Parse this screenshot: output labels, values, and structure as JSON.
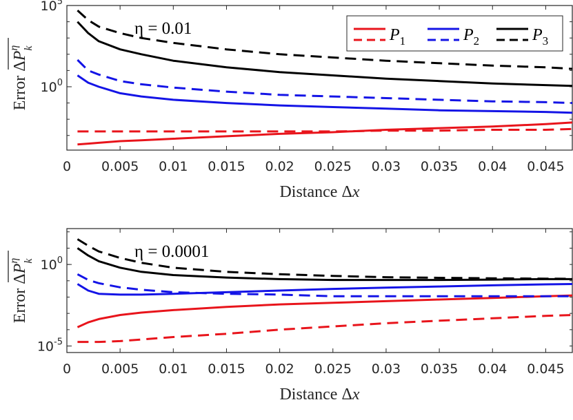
{
  "colors": {
    "P1": "#e8141b",
    "P2": "#1414e6",
    "P3": "#000000",
    "axis": "#262626"
  },
  "legend": {
    "entries": [
      {
        "name": "P",
        "sub": "1",
        "color": "#e8141b"
      },
      {
        "name": "P",
        "sub": "2",
        "color": "#1414e6"
      },
      {
        "name": "P",
        "sub": "3",
        "color": "#000000"
      }
    ]
  },
  "chart_data": [
    {
      "type": "line",
      "panel": "top",
      "annotation": "η = 0.01",
      "xlabel": "Distance Δx",
      "ylabel": "Error ΔP_k^η (overlined)",
      "yscale": "log",
      "xlim": [
        0,
        0.0475
      ],
      "ylim_log10": [
        -3.9,
        5
      ],
      "xticks": [
        "0",
        "0.005",
        "0.01",
        "0.015",
        "0.02",
        "0.025",
        "0.03",
        "0.035",
        "0.04",
        "0.045"
      ],
      "yticks": [
        {
          "base": "10",
          "exp": "5",
          "log10": 5
        },
        {
          "base": "10",
          "exp": "0",
          "log10": 0
        }
      ],
      "x": [
        0.001,
        0.002,
        0.003,
        0.005,
        0.007,
        0.01,
        0.015,
        0.02,
        0.025,
        0.03,
        0.035,
        0.04,
        0.045,
        0.0475
      ],
      "series": [
        {
          "legend": "P1",
          "style": "solid",
          "values_log10": [
            -3.55,
            -3.5,
            -3.45,
            -3.35,
            -3.3,
            -3.2,
            -3.05,
            -2.9,
            -2.8,
            -2.65,
            -2.55,
            -2.45,
            -2.3,
            -2.2
          ]
        },
        {
          "legend": "P1",
          "style": "dashed",
          "values_log10": [
            -2.75,
            -2.75,
            -2.75,
            -2.75,
            -2.75,
            -2.75,
            -2.75,
            -2.75,
            -2.75,
            -2.7,
            -2.7,
            -2.65,
            -2.65,
            -2.6
          ]
        },
        {
          "legend": "P2",
          "style": "solid",
          "values_log10": [
            0.7,
            0.25,
            0,
            -0.4,
            -0.6,
            -0.8,
            -1.0,
            -1.15,
            -1.25,
            -1.35,
            -1.45,
            -1.5,
            -1.55,
            -1.6
          ]
        },
        {
          "legend": "P2",
          "style": "dashed",
          "values_log10": [
            1.65,
            1.0,
            0.75,
            0.35,
            0.15,
            -0.05,
            -0.3,
            -0.5,
            -0.6,
            -0.7,
            -0.8,
            -0.9,
            -0.95,
            -1.0
          ]
        },
        {
          "legend": "P3",
          "style": "solid",
          "values_log10": [
            4.0,
            3.3,
            2.8,
            2.3,
            2.0,
            1.6,
            1.2,
            0.9,
            0.7,
            0.5,
            0.35,
            0.2,
            0.1,
            0.05
          ]
        },
        {
          "legend": "P3",
          "style": "dashed",
          "values_log10": [
            4.7,
            4.1,
            3.7,
            3.3,
            3.0,
            2.7,
            2.3,
            2.0,
            1.8,
            1.6,
            1.45,
            1.3,
            1.2,
            1.1
          ]
        }
      ]
    },
    {
      "type": "line",
      "panel": "bottom",
      "annotation": "η = 0.0001",
      "xlabel": "Distance Δx",
      "ylabel": "Error ΔP_k^η (overlined)",
      "yscale": "log",
      "xlim": [
        0,
        0.0475
      ],
      "ylim_log10": [
        -5.4,
        2.2
      ],
      "xticks": [
        "0",
        "0.005",
        "0.01",
        "0.015",
        "0.02",
        "0.025",
        "0.03",
        "0.035",
        "0.04",
        "0.045"
      ],
      "yticks": [
        {
          "base": "10",
          "exp": "0",
          "log10": 0
        },
        {
          "base": "10",
          "exp": "-5",
          "log10": -5
        }
      ],
      "x": [
        0.001,
        0.002,
        0.003,
        0.005,
        0.007,
        0.01,
        0.015,
        0.02,
        0.025,
        0.03,
        0.035,
        0.04,
        0.045,
        0.0475
      ],
      "series": [
        {
          "legend": "P1",
          "style": "solid",
          "values_log10": [
            -3.85,
            -3.55,
            -3.35,
            -3.1,
            -2.95,
            -2.8,
            -2.6,
            -2.45,
            -2.35,
            -2.25,
            -2.15,
            -2.05,
            -1.95,
            -1.9
          ]
        },
        {
          "legend": "P1",
          "style": "dashed",
          "values_log10": [
            -4.75,
            -4.75,
            -4.75,
            -4.7,
            -4.6,
            -4.45,
            -4.25,
            -4.0,
            -3.8,
            -3.6,
            -3.45,
            -3.3,
            -3.15,
            -3.1
          ]
        },
        {
          "legend": "P2",
          "style": "solid",
          "values_log10": [
            -1.2,
            -1.6,
            -1.8,
            -1.85,
            -1.85,
            -1.8,
            -1.7,
            -1.6,
            -1.5,
            -1.42,
            -1.35,
            -1.28,
            -1.22,
            -1.2
          ]
        },
        {
          "legend": "P2",
          "style": "dashed",
          "values_log10": [
            -0.6,
            -0.95,
            -1.15,
            -1.4,
            -1.55,
            -1.7,
            -1.8,
            -1.85,
            -1.95,
            -1.95,
            -1.95,
            -1.95,
            -1.95,
            -1.95
          ]
        },
        {
          "legend": "P3",
          "style": "solid",
          "values_log10": [
            1.0,
            0.55,
            0.2,
            -0.2,
            -0.45,
            -0.65,
            -0.8,
            -0.9,
            -0.95,
            -0.95,
            -0.95,
            -0.93,
            -0.9,
            -0.9
          ]
        },
        {
          "legend": "P3",
          "style": "dashed",
          "values_log10": [
            1.55,
            1.15,
            0.8,
            0.4,
            0.1,
            -0.2,
            -0.45,
            -0.6,
            -0.7,
            -0.78,
            -0.82,
            -0.85,
            -0.87,
            -0.88
          ]
        }
      ]
    }
  ]
}
